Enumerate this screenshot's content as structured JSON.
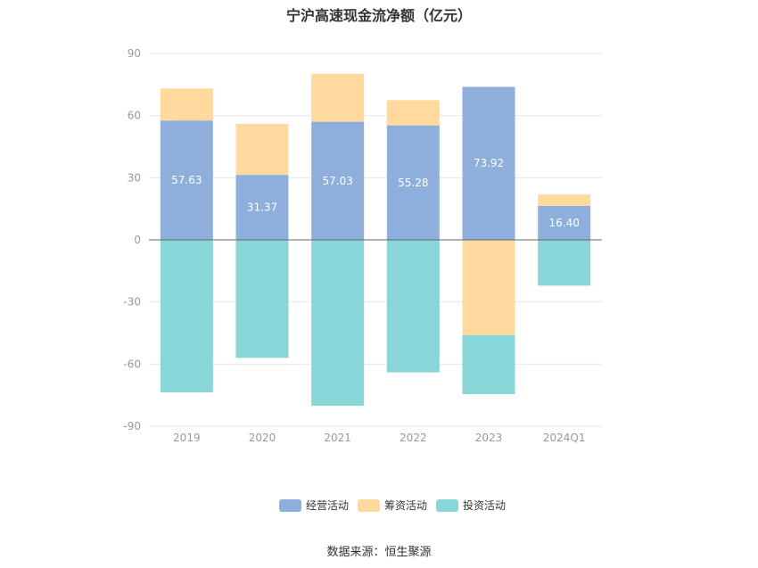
{
  "title": "宁沪高速现金流净额（亿元）",
  "source": "数据来源：恒生聚源",
  "colors": {
    "operating": "#8eaedb",
    "financing": "#ffd99d",
    "investing": "#88d6d8",
    "grid": "#e5e8ee",
    "zero": "#666666"
  },
  "chart_data": {
    "type": "bar",
    "stacked": true,
    "categories": [
      "2019",
      "2020",
      "2021",
      "2022",
      "2023",
      "2024Q1"
    ],
    "ylim": [
      -90,
      90
    ],
    "yticks": [
      90,
      60,
      30,
      0,
      -30,
      -60,
      -90
    ],
    "grid": true,
    "legend_position": "bottom",
    "series": [
      {
        "name": "经营活动",
        "color": "#8eaedb",
        "values": [
          57.63,
          31.37,
          57.03,
          55.28,
          73.92,
          16.4
        ],
        "labels": [
          "57.63",
          "31.37",
          "57.03",
          "55.28",
          "73.92",
          "16.40"
        ]
      },
      {
        "name": "筹资活动",
        "color": "#ffd99d",
        "values": [
          15.5,
          24.6,
          23.1,
          12.2,
          -46.0,
          5.6
        ]
      },
      {
        "name": "投资活动",
        "color": "#88d6d8",
        "values": [
          -73.6,
          -57.0,
          -80.1,
          -64.0,
          -28.5,
          -22.1
        ]
      }
    ]
  }
}
